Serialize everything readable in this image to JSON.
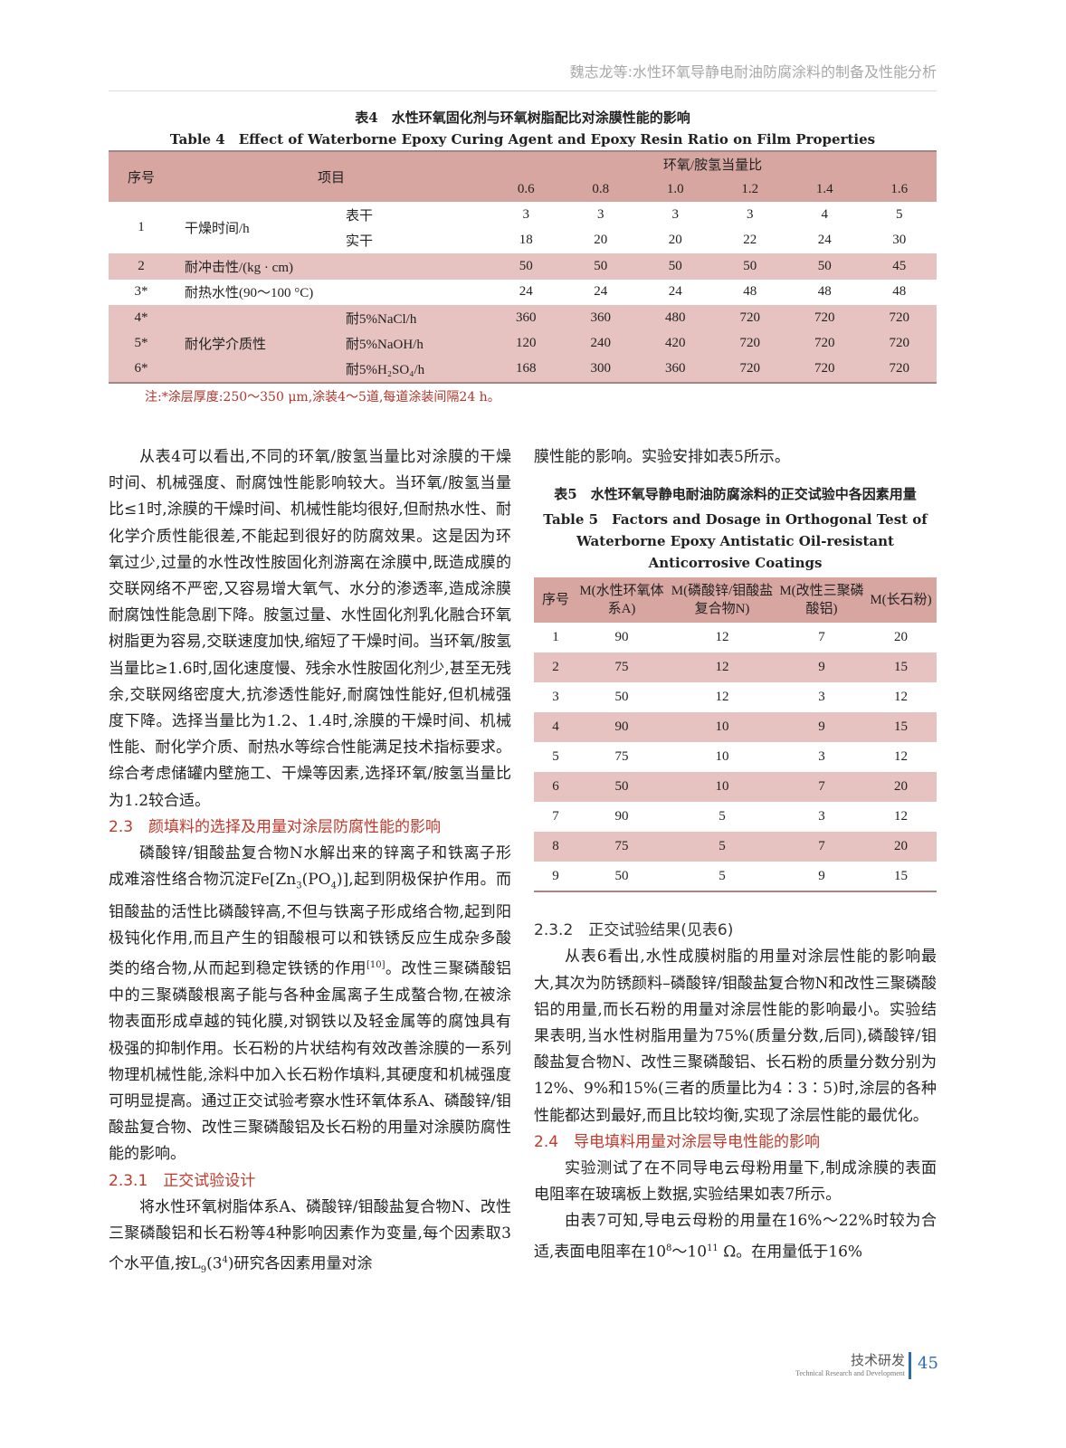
{
  "running_header": "魏志龙等:水性环氧导静电耐油防腐涂料的制备及性能分析",
  "table4": {
    "caption_cn": "表4　水性环氧固化剂与环氧树脂配比对涂膜性能的影响",
    "caption_en": "Table 4　Effect of Waterborne Epoxy Curing Agent and Epoxy Resin Ratio on Film Properties",
    "col_no": "序号",
    "col_item": "项目",
    "col_ratio": "环氧/胺氢当量比",
    "ratios": [
      "0.6",
      "0.8",
      "1.0",
      "1.2",
      "1.4",
      "1.6"
    ],
    "rows": [
      {
        "no": "1",
        "item": "干燥时间/h",
        "sub": "表干",
        "values": [
          "3",
          "3",
          "3",
          "3",
          "4",
          "5"
        ]
      },
      {
        "no": "",
        "item": "",
        "sub": "实干",
        "values": [
          "18",
          "20",
          "20",
          "22",
          "24",
          "30"
        ]
      },
      {
        "no": "2",
        "item": "耐冲击性/(kg · cm)",
        "sub": "",
        "values": [
          "50",
          "50",
          "50",
          "50",
          "50",
          "45"
        ]
      },
      {
        "no": "3*",
        "item": "耐热水性(90～100 °C)",
        "sub": "",
        "values": [
          "24",
          "24",
          "24",
          "48",
          "48",
          "48"
        ]
      },
      {
        "no": "4*",
        "item": "",
        "sub": "耐5%NaCl/h",
        "values": [
          "360",
          "360",
          "480",
          "720",
          "720",
          "720"
        ]
      },
      {
        "no": "5*",
        "item": "耐化学介质性",
        "sub": "耐5%NaOH/h",
        "values": [
          "120",
          "240",
          "420",
          "720",
          "720",
          "720"
        ]
      },
      {
        "no": "6*",
        "item": "",
        "sub": "耐5%H₂SO₄/h",
        "values": [
          "168",
          "300",
          "360",
          "720",
          "720",
          "720"
        ]
      }
    ],
    "note": "注:*涂层厚度:250～350 μm,涂装4～5道,每道涂装间隔24 h。"
  },
  "left_column": {
    "p1": "从表4可以看出,不同的环氧/胺氢当量比对涂膜的干燥时间、机械强度、耐腐蚀性能影响较大。当环氧/胺氢当量比≤1时,涂膜的干燥时间、机械性能均很好,但耐热水性、耐化学介质性能很差,不能起到很好的防腐效果。这是因为环氧过少,过量的水性改性胺固化剂游离在涂膜中,既造成膜的交联网络不严密,又容易增大氧气、水分的渗透率,造成涂膜耐腐蚀性能急剧下降。胺氢过量、水性固化剂乳化融合环氧树脂更为容易,交联速度加快,缩短了干燥时间。当环氧/胺氢当量比≥1.6时,固化速度慢、残余水性胺固化剂少,甚至无残余,交联网络密度大,抗渗透性能好,耐腐蚀性能好,但机械强度下降。选择当量比为1.2、1.4时,涂膜的干燥时间、机械性能、耐化学介质、耐热水等综合性能满足技术指标要求。综合考虑储罐内壁施工、干燥等因素,选择环氧/胺氢当量比为1.2较合适。",
    "h_2_3": "2.3　颜填料的选择及用量对涂层防腐性能的影响",
    "p2a": "磷酸锌/钼酸盐复合物N水解出来的锌离子和铁离子形成难溶性络合物沉淀Fe[Zn",
    "p2b": "3",
    "p2c": "(PO",
    "p2d": "4",
    "p2e": ")],起到阴极保护作用。而钼酸盐的活性比磷酸锌高,不但与铁离子形成络合物,起到阳极钝化作用,而且产生的钼酸根可以和铁锈反应生成杂多酸类的络合物,从而起到稳定铁锈的作用",
    "p2ref": "[10]",
    "p2f": "。改性三聚磷酸铝中的三聚磷酸根离子能与各种金属离子生成螯合物,在被涂物表面形成卓越的钝化膜,对钢铁以及轻金属等的腐蚀具有极强的抑制作用。长石粉的片状结构有效改善涂膜的一系列物理机械性能,涂料中加入长石粉作填料,其硬度和机械强度可明显提高。通过正交试验考察水性环氧体系A、磷酸锌/钼酸盐复合物、改性三聚磷酸铝及长石粉的用量对涂膜防腐性能的影响。",
    "h_2_3_1": "2.3.1　正交试验设计",
    "p3a": "将水性环氧树脂体系A、磷酸锌/钼酸盐复合物N、改性三聚磷酸铝和长石粉等4种影响因素作为变量,每个因素取3个水平值,按L",
    "p3b": "9",
    "p3c": "(3",
    "p3d": "4",
    "p3e": ")研究各因素用量对涂"
  },
  "right_column": {
    "p0": "膜性能的影响。实验安排如表5所示。",
    "table5": {
      "caption_cn": "表5　水性环氧导静电耐油防腐涂料的正交试验中各因素用量",
      "caption_en": "Table 5　Factors and Dosage in Orthogonal Test of Waterborne Epoxy Antistatic Oil-resistant Anticorrosive Coatings",
      "headers": [
        "序号",
        "M(水性环氧体系A)",
        "M(磷酸锌/钼酸盐复合物N)",
        "M(改性三聚磷酸铝)",
        "M(长石粉)"
      ],
      "rows": [
        [
          "1",
          "90",
          "12",
          "7",
          "20"
        ],
        [
          "2",
          "75",
          "12",
          "9",
          "15"
        ],
        [
          "3",
          "50",
          "12",
          "3",
          "12"
        ],
        [
          "4",
          "90",
          "10",
          "9",
          "15"
        ],
        [
          "5",
          "75",
          "10",
          "3",
          "12"
        ],
        [
          "6",
          "50",
          "10",
          "7",
          "20"
        ],
        [
          "7",
          "90",
          "5",
          "3",
          "12"
        ],
        [
          "8",
          "75",
          "5",
          "7",
          "20"
        ],
        [
          "9",
          "50",
          "5",
          "9",
          "15"
        ]
      ]
    },
    "h_2_3_2": "2.3.2　正交试验结果(见表6)",
    "p1": "从表6看出,水性成膜树脂的用量对涂层性能的影响最大,其次为防锈颜料–磷酸锌/钼酸盐复合物N和改性三聚磷酸铝的用量,而长石粉的用量对涂层性能的影响最小。实验结果表明,当水性树脂用量为75%(质量分数,后同),磷酸锌/钼酸盐复合物N、改性三聚磷酸铝、长石粉的质量分数分别为12%、9%和15%(三者的质量比为4∶3∶5)时,涂层的各种性能都达到最好,而且比较均衡,实现了涂层性能的最优化。",
    "h_2_4": "2.4　导电填料用量对涂层导电性能的影响",
    "p2": "实验测试了在不同导电云母粉用量下,制成涂膜的表面电阻率在玻璃板上数据,实验结果如表7所示。",
    "p3a": "由表7可知,导电云母粉的用量在16%～22%时较为合适,表面电阻率在10",
    "p3b": "8",
    "p3c": "～10",
    "p3d": "11",
    "p3e": " Ω。在用量低于16%"
  },
  "footer": {
    "section_cn": "技术研发",
    "section_en": "Technical Research and Development",
    "page": "45",
    "accent": "#2b6cb0"
  }
}
